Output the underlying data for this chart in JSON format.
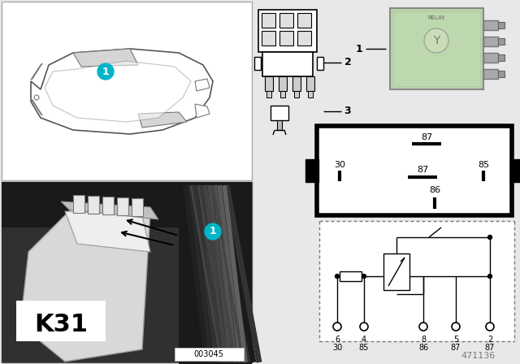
{
  "bg_color": "#e8e8e8",
  "white": "#ffffff",
  "black": "#000000",
  "teal": "#00b5c8",
  "green_relay": "#b8d4a8",
  "dark_photo": "#282828",
  "part_num": "471136",
  "photo_label": "003045",
  "k31_label": "K31",
  "item1": "1",
  "item2": "2",
  "item3": "3",
  "pin_nums_top": [
    "6",
    "4",
    "8",
    "5",
    "2"
  ],
  "pin_nums_bot": [
    "30",
    "85",
    "86",
    "87",
    "87"
  ],
  "relay_box_pins": [
    "87",
    "30",
    "87",
    "85",
    "86"
  ]
}
